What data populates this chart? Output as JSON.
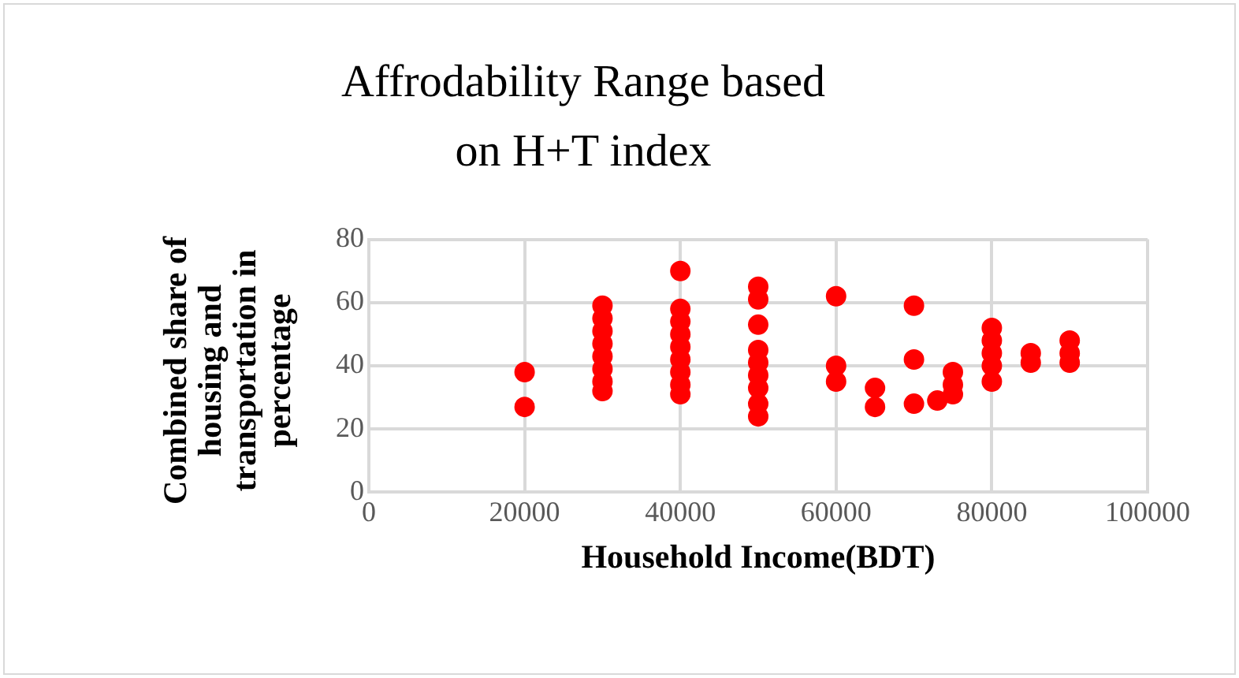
{
  "chart_data": {
    "type": "scatter",
    "title": "Affrodability  Range based on H+T index",
    "xlabel": "Household Income(BDT)",
    "ylabel": "Combined share of housing and transportation in percentage",
    "series": [
      {
        "color": "#ff0000",
        "x": [
          20000,
          20000,
          30000,
          30000,
          30000,
          30000,
          30000,
          30000,
          30000,
          30000,
          40000,
          40000,
          40000,
          40000,
          40000,
          40000,
          40000,
          40000,
          40000,
          50000,
          50000,
          50000,
          50000,
          50000,
          50000,
          50000,
          50000,
          50000,
          60000,
          60000,
          60000,
          65000,
          65000,
          70000,
          70000,
          70000,
          73000,
          75000,
          75000,
          75000,
          80000,
          80000,
          80000,
          80000,
          80000,
          85000,
          85000,
          90000,
          90000,
          90000
        ],
        "values": [
          38,
          27,
          59,
          55,
          51,
          47,
          43,
          39,
          35,
          32,
          70,
          58,
          54,
          50,
          46,
          42,
          38,
          34,
          31,
          65,
          61,
          53,
          45,
          41,
          37,
          33,
          28,
          24,
          62,
          40,
          35,
          33,
          27,
          59,
          42,
          28,
          29,
          38,
          34,
          31,
          52,
          48,
          44,
          40,
          35,
          44,
          41,
          48,
          44,
          41
        ]
      }
    ],
    "xlim": [
      0,
      100000
    ],
    "xticks": [
      0,
      20000,
      40000,
      60000,
      80000,
      100000
    ],
    "ylim": [
      0,
      80
    ],
    "yticks": [
      0,
      20,
      40,
      60,
      80
    ],
    "grid": true,
    "marker": "circle"
  }
}
